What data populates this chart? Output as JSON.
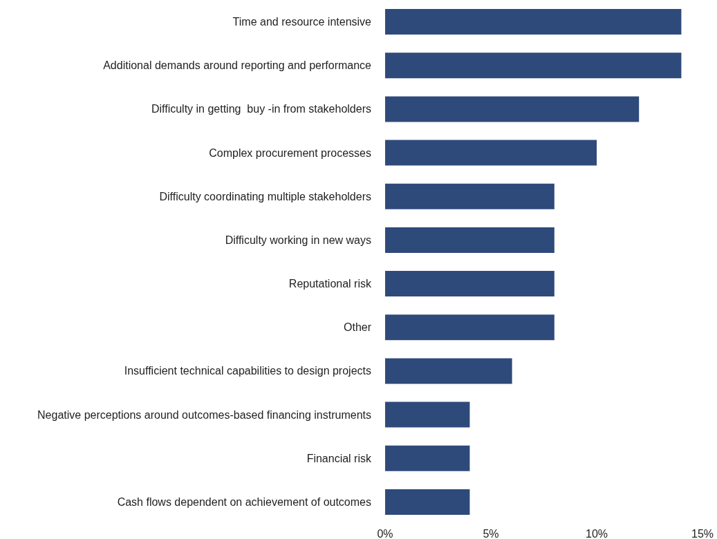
{
  "chart_data": {
    "type": "bar",
    "orientation": "horizontal",
    "categories": [
      "Time and resource intensive",
      "Additional demands around reporting and performance",
      "Difficulty in getting  buy -in from stakeholders",
      "Complex procurement processes",
      "Difficulty coordinating multiple stakeholders",
      "Difficulty working in new ways",
      "Reputational risk",
      "Other",
      "Insufficient technical capabilities to design projects",
      "Negative perceptions around outcomes-based financing instruments",
      "Financial risk",
      "Cash flows dependent on achievement of outcomes"
    ],
    "values": [
      14,
      14,
      12,
      10,
      8,
      8,
      8,
      8,
      6,
      4,
      4,
      4
    ],
    "color": "#2e4a7a",
    "xlim": [
      0,
      15
    ],
    "xticks": [
      {
        "value": 0,
        "label": "0%"
      },
      {
        "value": 5,
        "label": "5%"
      },
      {
        "value": 10,
        "label": "10%"
      },
      {
        "value": 15,
        "label": "15%"
      }
    ],
    "grid": false
  }
}
